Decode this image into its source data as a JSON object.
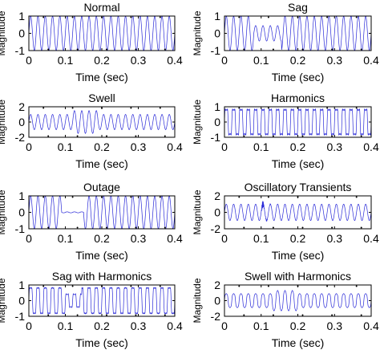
{
  "figure": {
    "line_color": "#2a2ad8",
    "axes_color": "#000000",
    "background": "#ffffff",
    "dot_color": "#000000"
  },
  "chart_data": [
    {
      "type": "line",
      "title": "Normal",
      "xlabel": "Time (sec)",
      "ylabel": "Magnitude",
      "xlim": [
        0,
        0.4
      ],
      "ylim": [
        -1,
        1
      ],
      "xticks": [
        0,
        0.1,
        0.2,
        0.3,
        0.4
      ],
      "xtick_labels": [
        "0",
        "0.1",
        "0.2",
        "0.3",
        "0.4"
      ],
      "yticks": [
        -1,
        0,
        1
      ],
      "ytick_labels": [
        "-1",
        "0",
        "1"
      ],
      "signal": {
        "frequency_hz": 50,
        "base_amplitude": 1.0,
        "samples": 400
      },
      "disturbance": {
        "kind": "none"
      }
    },
    {
      "type": "line",
      "title": "Sag",
      "xlabel": "Time (sec)",
      "ylabel": "Magnitude",
      "xlim": [
        0,
        0.4
      ],
      "ylim": [
        -1,
        1
      ],
      "xticks": [
        0,
        0.1,
        0.2,
        0.3,
        0.4
      ],
      "xtick_labels": [
        "0",
        "0.1",
        "0.2",
        "0.3",
        "0.4"
      ],
      "yticks": [
        -1,
        0,
        1
      ],
      "ytick_labels": [
        "-1",
        "0",
        "1"
      ],
      "signal": {
        "frequency_hz": 50,
        "base_amplitude": 1.0,
        "samples": 400
      },
      "disturbance": {
        "kind": "sag",
        "start": 0.08,
        "end": 0.155,
        "amplitude": 0.45
      }
    },
    {
      "type": "line",
      "title": "Swell",
      "xlabel": "Time (sec)",
      "ylabel": "Magnitude",
      "xlim": [
        0,
        0.4
      ],
      "ylim": [
        -2,
        2
      ],
      "xticks": [
        0,
        0.1,
        0.2,
        0.3,
        0.4
      ],
      "xtick_labels": [
        "0",
        "0.1",
        "0.2",
        "0.3",
        "0.4"
      ],
      "yticks": [
        -2,
        0,
        2
      ],
      "ytick_labels": [
        "-2",
        "0",
        "2"
      ],
      "signal": {
        "frequency_hz": 50,
        "base_amplitude": 1.0,
        "samples": 400
      },
      "disturbance": {
        "kind": "swell",
        "start": 0.12,
        "end": 0.19,
        "amplitude": 1.5
      }
    },
    {
      "type": "line",
      "title": "Harmonics",
      "xlabel": "Time (sec)",
      "ylabel": "Magnitude",
      "xlim": [
        0,
        0.4
      ],
      "ylim": [
        -1,
        1
      ],
      "xticks": [
        0,
        0.1,
        0.2,
        0.3,
        0.4
      ],
      "xtick_labels": [
        "0",
        "0.1",
        "0.2",
        "0.3",
        "0.4"
      ],
      "yticks": [
        -1,
        0,
        1
      ],
      "ytick_labels": [
        "-1",
        "0",
        "1"
      ],
      "signal": {
        "frequency_hz": 50,
        "base_amplitude": 1.0,
        "samples": 600
      },
      "disturbance": {
        "kind": "harmonics",
        "start": 0.0,
        "end": 0.4,
        "h3": 0.3,
        "h5": 0.12
      }
    },
    {
      "type": "line",
      "title": "Outage",
      "xlabel": "Time (sec)",
      "ylabel": "Magnitude",
      "xlim": [
        0,
        0.4
      ],
      "ylim": [
        -1,
        1
      ],
      "xticks": [
        0,
        0.1,
        0.2,
        0.3,
        0.4
      ],
      "xtick_labels": [
        "0",
        "0.1",
        "0.2",
        "0.3",
        "0.4"
      ],
      "yticks": [
        -1,
        0,
        1
      ],
      "ytick_labels": [
        "-1",
        "0",
        "1"
      ],
      "signal": {
        "frequency_hz": 50,
        "base_amplitude": 1.0,
        "samples": 400
      },
      "disturbance": {
        "kind": "outage",
        "start": 0.09,
        "end": 0.15,
        "amplitude": 0.03
      }
    },
    {
      "type": "line",
      "title": "Oscillatory Transients",
      "xlabel": "Time (sec)",
      "ylabel": "Magnitude",
      "xlim": [
        0,
        0.4
      ],
      "ylim": [
        -2,
        2
      ],
      "xticks": [
        0,
        0.1,
        0.2,
        0.3,
        0.4
      ],
      "xtick_labels": [
        "0",
        "0.1",
        "0.2",
        "0.3",
        "0.4"
      ],
      "yticks": [
        -2,
        0,
        2
      ],
      "ytick_labels": [
        "-2",
        "0",
        "2"
      ],
      "signal": {
        "frequency_hz": 50,
        "base_amplitude": 1.0,
        "samples": 600
      },
      "disturbance": {
        "kind": "transient",
        "start": 0.1,
        "decay": 120,
        "frequency_hz": 700,
        "amplitude": 0.7
      }
    },
    {
      "type": "line",
      "title": "Sag with Harmonics",
      "xlabel": "Time (sec)",
      "ylabel": "Magnitude",
      "xlim": [
        0,
        0.4
      ],
      "ylim": [
        -1,
        1
      ],
      "xticks": [
        0,
        0.1,
        0.2,
        0.3,
        0.4
      ],
      "xtick_labels": [
        "0",
        "0.1",
        "0.2",
        "0.3",
        "0.4"
      ],
      "yticks": [
        -1,
        0,
        1
      ],
      "ytick_labels": [
        "-1",
        "0",
        "1"
      ],
      "signal": {
        "frequency_hz": 50,
        "base_amplitude": 1.0,
        "samples": 600
      },
      "disturbance": {
        "kind": "sag_harmonics",
        "start": 0.1,
        "end": 0.145,
        "amplitude": 0.5,
        "h3": 0.3,
        "h5": 0.12
      }
    },
    {
      "type": "line",
      "title": "Swell with Harmonics",
      "xlabel": "Time (sec)",
      "ylabel": "Magnitude",
      "xlim": [
        0,
        0.4
      ],
      "ylim": [
        -2,
        2
      ],
      "xticks": [
        0,
        0.1,
        0.2,
        0.3,
        0.4
      ],
      "xtick_labels": [
        "0",
        "0.1",
        "0.2",
        "0.3",
        "0.4"
      ],
      "yticks": [
        -2,
        0,
        2
      ],
      "ytick_labels": [
        "-2",
        "0",
        "2"
      ],
      "signal": {
        "frequency_hz": 50,
        "base_amplitude": 1.0,
        "samples": 600
      },
      "disturbance": {
        "kind": "swell_harmonics",
        "start": 0.13,
        "end": 0.2,
        "amplitude": 1.4,
        "h3": 0.15,
        "h5": 0.05
      }
    }
  ]
}
